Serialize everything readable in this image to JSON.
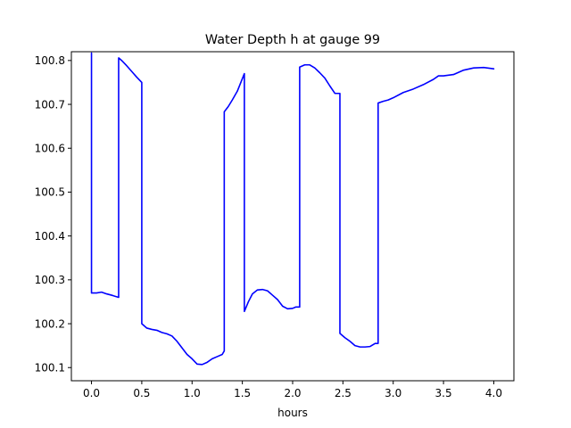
{
  "chart_data": {
    "type": "line",
    "title": "Water Depth h at gauge 99",
    "xlabel": "hours",
    "ylabel": "",
    "xlim": [
      -0.2,
      4.2
    ],
    "ylim": [
      100.07,
      100.82
    ],
    "xticks": [
      0.0,
      0.5,
      1.0,
      1.5,
      2.0,
      2.5,
      3.0,
      3.5,
      4.0
    ],
    "xtick_labels": [
      "0.0",
      "0.5",
      "1.0",
      "1.5",
      "2.0",
      "2.5",
      "3.0",
      "3.5",
      "4.0"
    ],
    "yticks": [
      100.1,
      100.2,
      100.3,
      100.4,
      100.5,
      100.6,
      100.7,
      100.8
    ],
    "ytick_labels": [
      "100.1",
      "100.2",
      "100.3",
      "100.4",
      "100.5",
      "100.6",
      "100.7",
      "100.8"
    ],
    "grid": false,
    "series": [
      {
        "color": "#0000ff",
        "x": [
          0.0,
          0.0,
          0.05,
          0.1,
          0.15,
          0.2,
          0.27,
          0.27,
          0.3,
          0.35,
          0.4,
          0.45,
          0.5,
          0.5,
          0.55,
          0.6,
          0.65,
          0.7,
          0.75,
          0.8,
          0.85,
          0.9,
          0.95,
          1.0,
          1.05,
          1.1,
          1.15,
          1.2,
          1.25,
          1.3,
          1.32,
          1.32,
          1.36,
          1.4,
          1.45,
          1.52,
          1.52,
          1.56,
          1.6,
          1.65,
          1.7,
          1.75,
          1.8,
          1.85,
          1.9,
          1.95,
          2.0,
          2.03,
          2.07,
          2.07,
          2.12,
          2.17,
          2.22,
          2.27,
          2.32,
          2.37,
          2.42,
          2.47,
          2.47,
          2.52,
          2.57,
          2.62,
          2.67,
          2.72,
          2.77,
          2.82,
          2.85,
          2.85,
          2.9,
          2.95,
          3.0,
          3.1,
          3.2,
          3.3,
          3.4,
          3.45,
          3.5,
          3.6,
          3.7,
          3.8,
          3.9,
          4.0
        ],
        "y": [
          100.817,
          100.27,
          100.27,
          100.272,
          100.268,
          100.265,
          100.26,
          100.806,
          100.8,
          100.788,
          100.775,
          100.762,
          100.75,
          100.2,
          100.19,
          100.187,
          100.185,
          100.18,
          100.177,
          100.172,
          100.16,
          100.145,
          100.13,
          100.12,
          100.108,
          100.107,
          100.112,
          100.12,
          100.125,
          100.13,
          100.138,
          100.683,
          100.695,
          100.71,
          100.73,
          100.77,
          100.228,
          100.25,
          100.268,
          100.277,
          100.278,
          100.275,
          100.265,
          100.255,
          100.24,
          100.234,
          100.235,
          100.238,
          100.238,
          100.785,
          100.79,
          100.79,
          100.783,
          100.772,
          100.76,
          100.742,
          100.725,
          100.725,
          100.178,
          100.168,
          100.16,
          100.15,
          100.147,
          100.147,
          100.148,
          100.155,
          100.155,
          100.703,
          100.707,
          100.71,
          100.715,
          100.727,
          100.735,
          100.745,
          100.757,
          100.765,
          100.765,
          100.768,
          100.778,
          100.783,
          100.784,
          100.781
        ]
      }
    ]
  }
}
